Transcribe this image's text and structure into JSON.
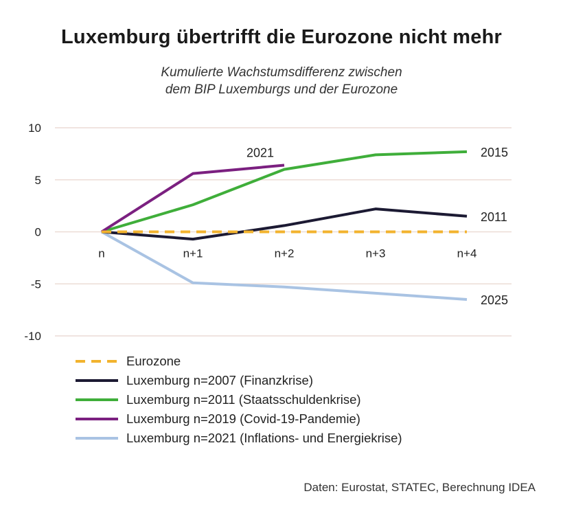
{
  "chart_data": {
    "type": "line",
    "title": "Luxemburg übertrifft die Eurozone nicht mehr",
    "subtitle": [
      "Kumulierte Wachstumsdifferenz zwischen",
      "dem BIP Luxemburgs und der Eurozone"
    ],
    "categories": [
      "n",
      "n+1",
      "n+2",
      "n+3",
      "n+4"
    ],
    "ylim": [
      -10,
      10
    ],
    "yticks": [
      10,
      5,
      0,
      -5,
      -10
    ],
    "grid": true,
    "legend_placement": "bottom",
    "series": [
      {
        "name": "Eurozone",
        "color": "#f2b32e",
        "dashed": true,
        "values": [
          0,
          0,
          0,
          0,
          0
        ],
        "end_label": ""
      },
      {
        "name": "Luxemburg n=2007 (Finanzkrise)",
        "color": "#1c1a33",
        "values": [
          0,
          -0.7,
          0.6,
          2.2,
          1.5
        ],
        "end_label": "2011"
      },
      {
        "name": "Luxemburg n=2011 (Staatsschuldenkrise)",
        "color": "#3fae3a",
        "values": [
          0,
          2.6,
          6.0,
          7.4,
          7.7
        ],
        "end_label": "2015"
      },
      {
        "name": "Luxemburg n=2019 (Covid-19-Pandemie)",
        "color": "#7b2080",
        "values": [
          0,
          5.6,
          6.4,
          null,
          null
        ],
        "end_label": "2021"
      },
      {
        "name": "Luxemburg n=2021 (Inflations- und Energiekrise)",
        "color": "#a9c3e3",
        "values": [
          0,
          -4.9,
          -5.3,
          -5.9,
          -6.5
        ],
        "end_label": "2025"
      }
    ]
  },
  "source": "Daten: Eurostat, STATEC, Berechnung IDEA"
}
